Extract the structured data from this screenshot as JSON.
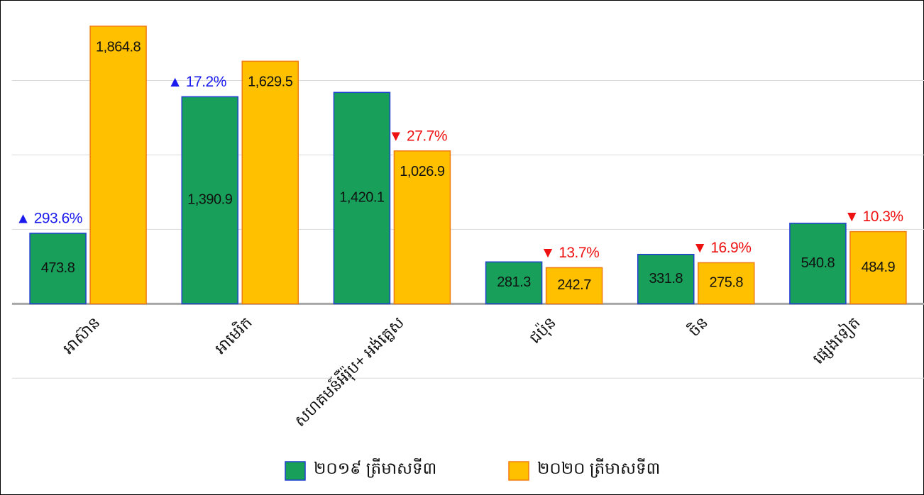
{
  "chart_data": {
    "type": "bar",
    "categories": [
      "អាស៊ាន",
      "អាមេរិក",
      "សហគមន៍អឺរ៉ុប+ អង់គ្លេស",
      "ជប៉ុន",
      "ចិន",
      "ផ្សេងទៀត"
    ],
    "series": [
      {
        "name": "២០១៩ ត្រីមាសទី៣",
        "color": "#18a05a",
        "stroke": "#1f3fd0",
        "values": [
          473.8,
          1390.9,
          1420.1,
          281.3,
          331.8,
          540.8
        ],
        "value_labels": [
          "473.8",
          "1,390.9",
          "1,420.1",
          "281.3",
          "331.8",
          "540.8"
        ]
      },
      {
        "name": "២០២០ ត្រីមាសទី៣",
        "color": "#ffc000",
        "stroke": "#f07c10",
        "values": [
          1864.8,
          1629.5,
          1026.9,
          242.7,
          275.8,
          484.9
        ],
        "value_labels": [
          "1,864.8",
          "1,629.5",
          "1,026.9",
          "242.7",
          "275.8",
          "484.9"
        ]
      }
    ],
    "annotations": [
      {
        "text": "▲ 293.6%",
        "color": "#1a1aee"
      },
      {
        "text": "▲ 17.2%",
        "color": "#1a1aee"
      },
      {
        "text": "▼ 27.7%",
        "color": "#ee1111"
      },
      {
        "text": "▼ 13.7%",
        "color": "#ee1111"
      },
      {
        "text": "▼ 16.9%",
        "color": "#ee1111"
      },
      {
        "text": "▼ 10.3%",
        "color": "#ee1111"
      }
    ],
    "ylim": [
      -500,
      2000
    ],
    "yticks": [
      -500,
      0,
      500,
      1000,
      1500
    ],
    "grid": true
  }
}
